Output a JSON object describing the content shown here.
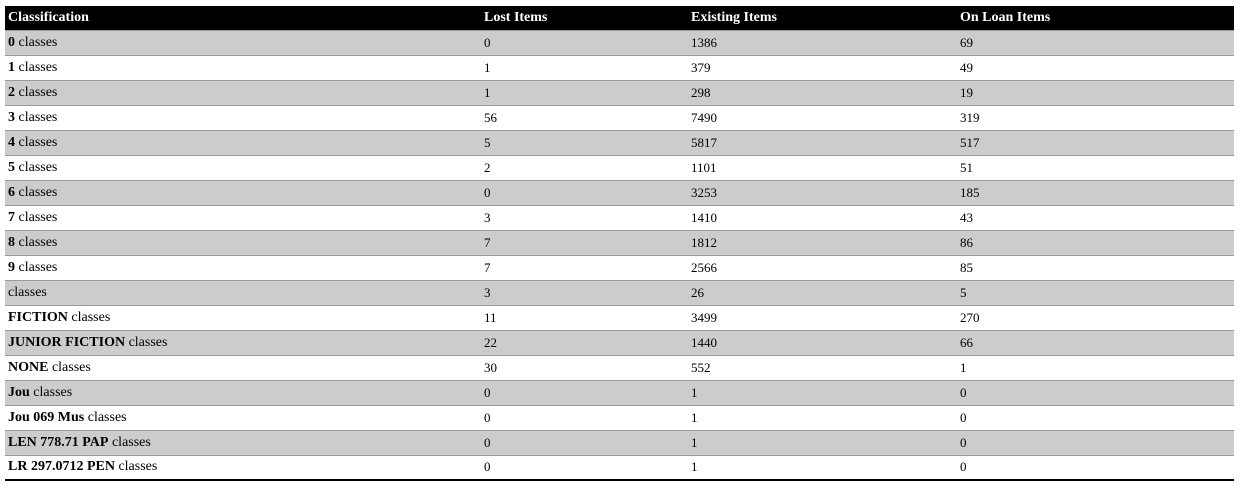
{
  "table": {
    "headers": {
      "classification": "Classification",
      "lost": "Lost Items",
      "existing": "Existing Items",
      "on_loan": "On Loan Items"
    },
    "rows": [
      {
        "code": "0",
        "suffix": " classes",
        "lost": "0",
        "existing": "1386",
        "on_loan": "69"
      },
      {
        "code": "1",
        "suffix": " classes",
        "lost": "1",
        "existing": "379",
        "on_loan": "49"
      },
      {
        "code": "2",
        "suffix": " classes",
        "lost": "1",
        "existing": "298",
        "on_loan": "19"
      },
      {
        "code": "3",
        "suffix": " classes",
        "lost": "56",
        "existing": "7490",
        "on_loan": "319"
      },
      {
        "code": "4",
        "suffix": " classes",
        "lost": "5",
        "existing": "5817",
        "on_loan": "517"
      },
      {
        "code": "5",
        "suffix": " classes",
        "lost": "2",
        "existing": "1101",
        "on_loan": "51"
      },
      {
        "code": "6",
        "suffix": " classes",
        "lost": "0",
        "existing": "3253",
        "on_loan": "185"
      },
      {
        "code": "7",
        "suffix": " classes",
        "lost": "3",
        "existing": "1410",
        "on_loan": "43"
      },
      {
        "code": "8",
        "suffix": " classes",
        "lost": "7",
        "existing": "1812",
        "on_loan": "86"
      },
      {
        "code": "9",
        "suffix": " classes",
        "lost": "7",
        "existing": "2566",
        "on_loan": "85"
      },
      {
        "code": "",
        "suffix": "classes",
        "lost": "3",
        "existing": "26",
        "on_loan": "5"
      },
      {
        "code": "FICTION",
        "suffix": " classes",
        "lost": "11",
        "existing": "3499",
        "on_loan": "270"
      },
      {
        "code": "JUNIOR FICTION",
        "suffix": " classes",
        "lost": "22",
        "existing": "1440",
        "on_loan": "66"
      },
      {
        "code": "NONE",
        "suffix": " classes",
        "lost": "30",
        "existing": "552",
        "on_loan": "1"
      },
      {
        "code": "Jou",
        "suffix": " classes",
        "lost": "0",
        "existing": "1",
        "on_loan": "0"
      },
      {
        "code": "Jou 069 Mus",
        "suffix": " classes",
        "lost": "0",
        "existing": "1",
        "on_loan": "0"
      },
      {
        "code": "LEN 778.71 PAP",
        "suffix": " classes",
        "lost": "0",
        "existing": "1",
        "on_loan": "0"
      },
      {
        "code": "LR 297.0712 PEN",
        "suffix": " classes",
        "lost": "0",
        "existing": "1",
        "on_loan": "0"
      }
    ]
  },
  "colors": {
    "header_bg": "#000000",
    "header_fg": "#ffffff",
    "row_alt_bg": "#cccccc",
    "row_bg": "#ffffff"
  }
}
